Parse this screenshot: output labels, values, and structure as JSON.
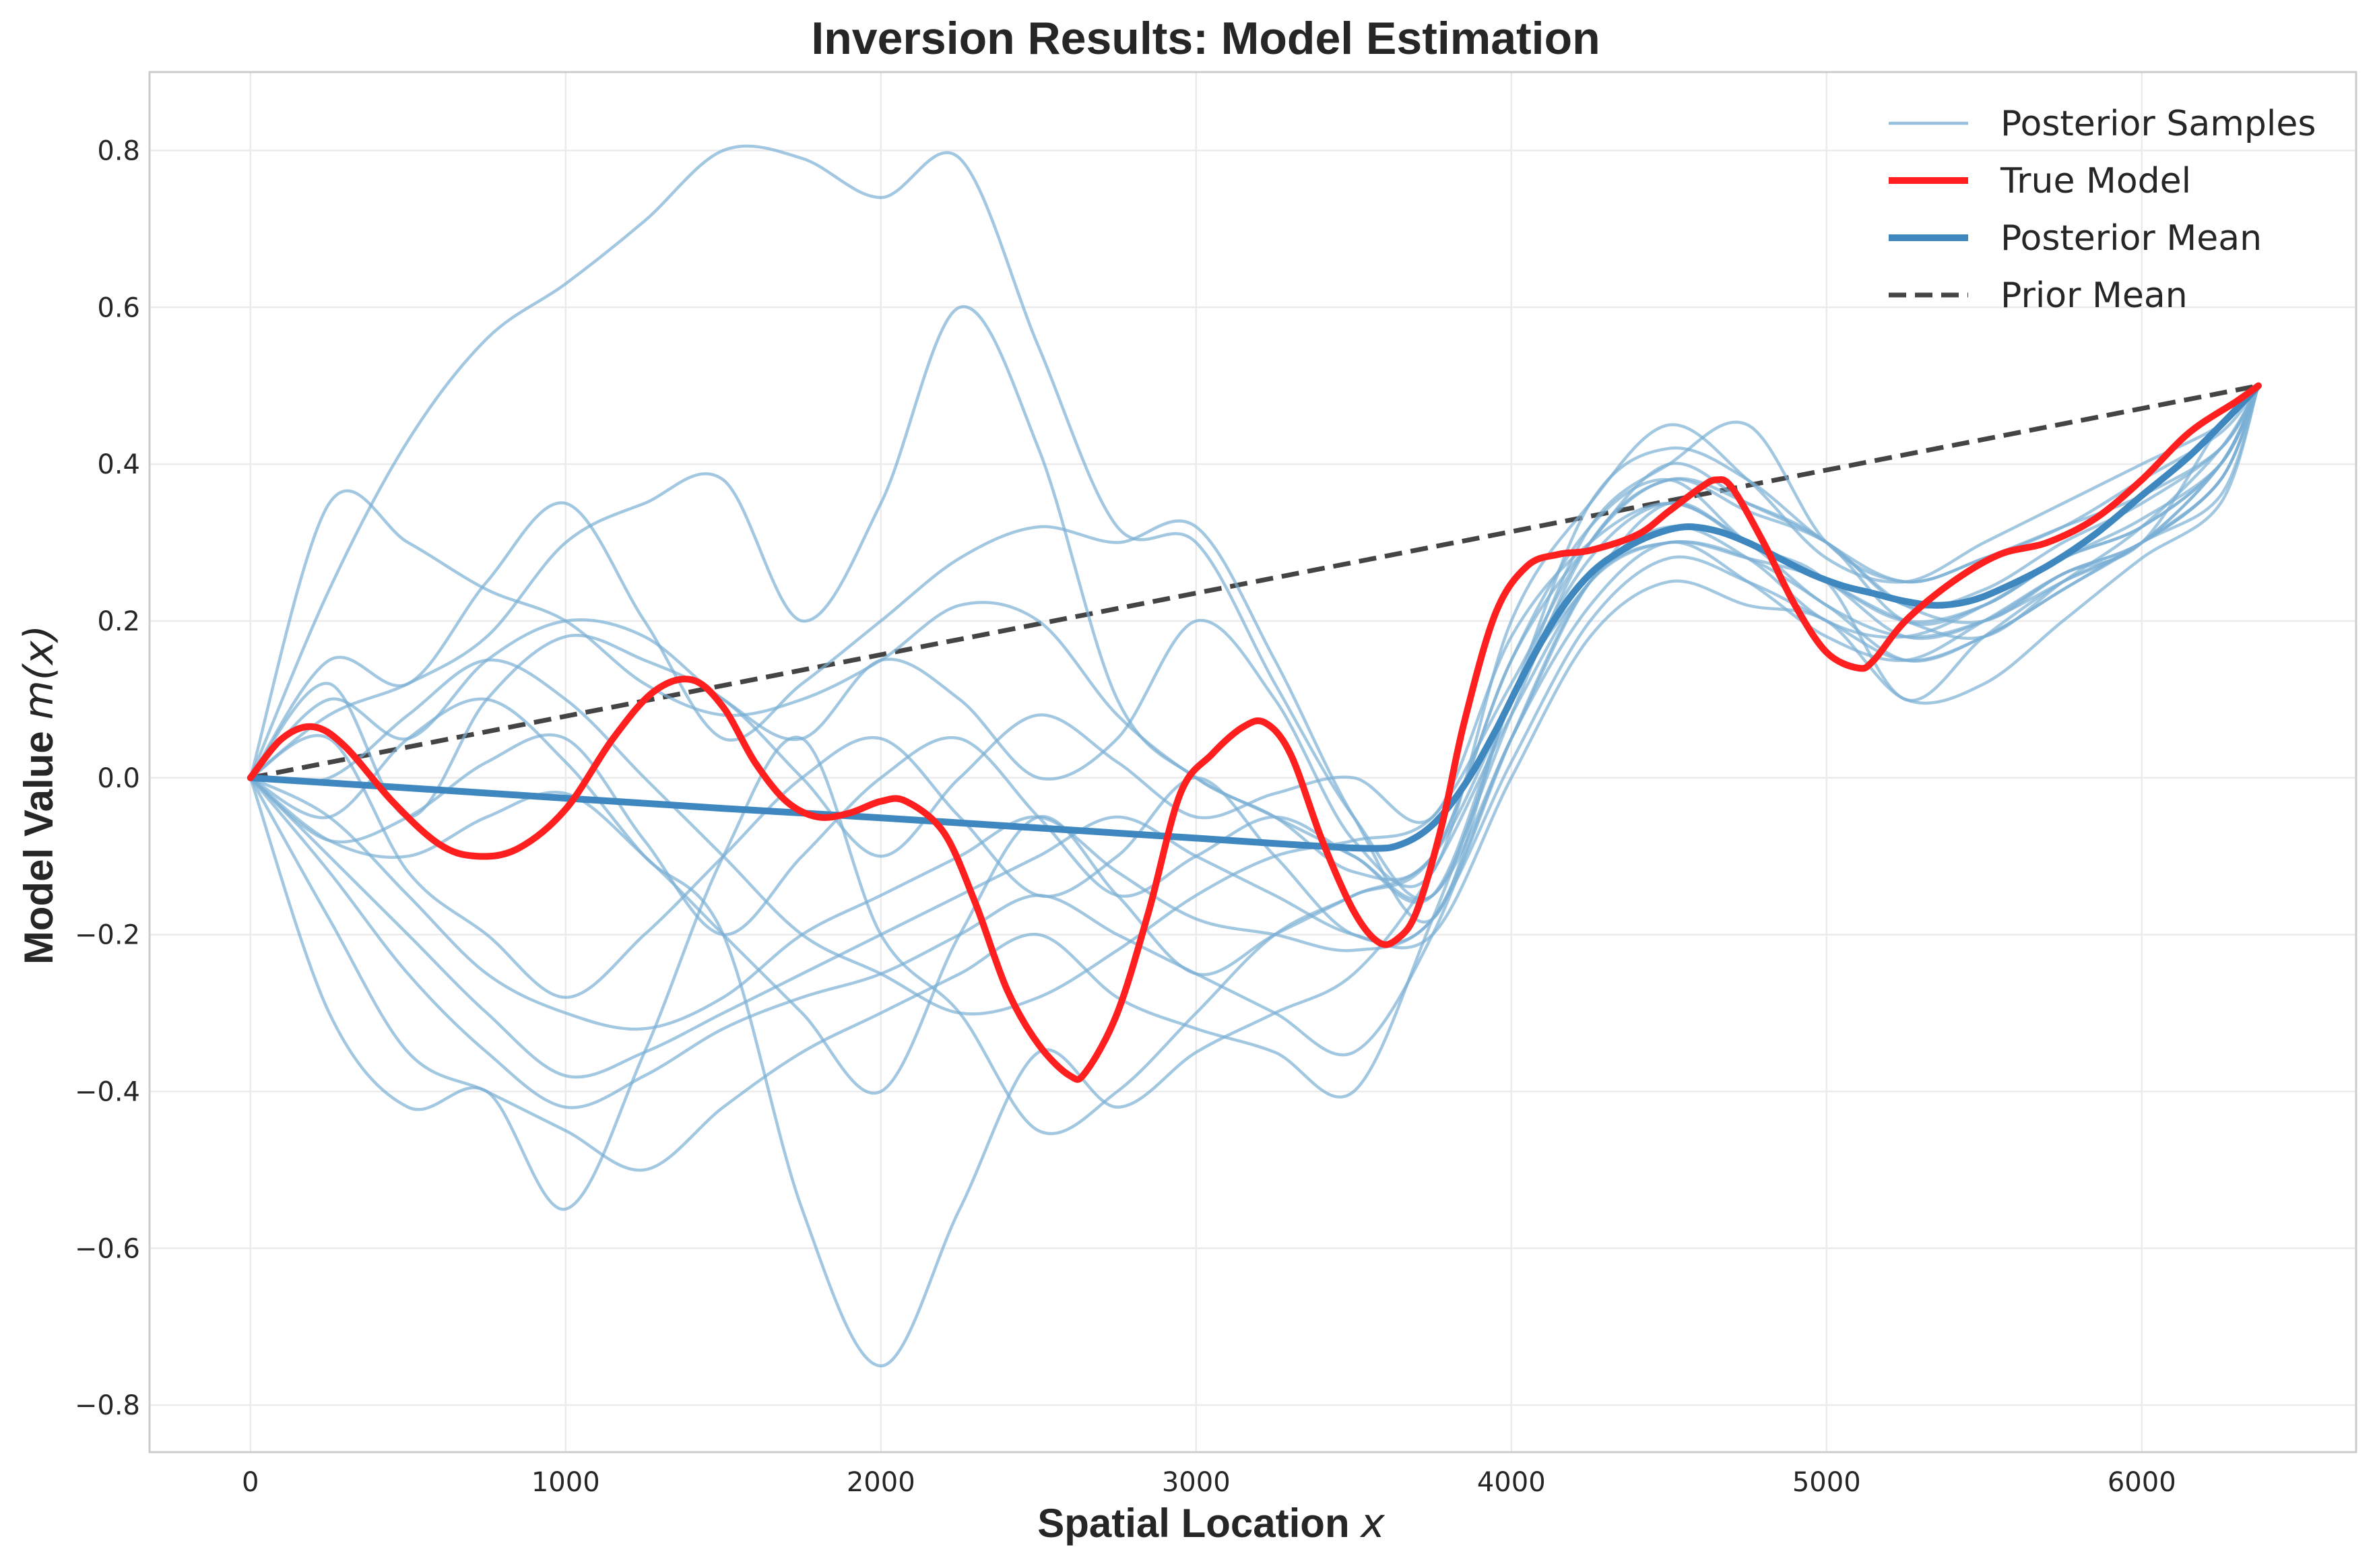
{
  "chart_data": {
    "type": "line",
    "title": "Inversion Results: Model Estimation",
    "xlabel": {
      "text": "Spatial Location ",
      "math": "x"
    },
    "ylabel": {
      "text": "Model Value ",
      "math": "m(x)"
    },
    "xlim": [
      -320,
      6680
    ],
    "ylim": [
      -0.86,
      0.9
    ],
    "xticks": [
      0,
      1000,
      2000,
      3000,
      4000,
      5000,
      6000
    ],
    "xtick_labels": [
      "0",
      "1000",
      "2000",
      "3000",
      "4000",
      "5000",
      "6000"
    ],
    "yticks": [
      0.8,
      0.6,
      0.4,
      0.2,
      0.0,
      -0.2,
      -0.4,
      -0.6,
      -0.8
    ],
    "ytick_labels": [
      "0.8",
      "0.6",
      "0.4",
      "0.2",
      "0.0",
      "−0.2",
      "−0.4",
      "−0.6",
      "−0.8"
    ],
    "grid": true,
    "legend_position": "top-right",
    "legend": [
      {
        "label": "Posterior Samples",
        "color": "#7bafd4",
        "style": "solid-thin"
      },
      {
        "label": "True Model",
        "color": "#ff1f1f",
        "style": "solid-thick"
      },
      {
        "label": "Posterior Mean",
        "color": "#3f87bf",
        "style": "solid-thick"
      },
      {
        "label": "Prior Mean",
        "color": "#444444",
        "style": "dashed"
      }
    ],
    "colors": {
      "samples": "#7bafd4",
      "true_model": "#ff1f1f",
      "posterior_mean": "#3f87bf",
      "prior_mean": "#444444"
    },
    "x_grid": [
      0,
      250,
      500,
      750,
      1000,
      1250,
      1500,
      1750,
      2000,
      2250,
      2500,
      2750,
      3000,
      3250,
      3500,
      3750,
      4000,
      4250,
      4500,
      4750,
      5000,
      5250,
      5500,
      5750,
      6000,
      6250,
      6370
    ],
    "true_model": {
      "x": [
        0,
        100,
        200,
        300,
        450,
        600,
        720,
        850,
        1000,
        1150,
        1280,
        1400,
        1500,
        1600,
        1700,
        1800,
        1900,
        2000,
        2080,
        2200,
        2300,
        2400,
        2500,
        2600,
        2650,
        2750,
        2850,
        2950,
        3050,
        3150,
        3220,
        3300,
        3400,
        3500,
        3580,
        3640,
        3700,
        3780,
        3850,
        3950,
        4050,
        4150,
        4250,
        4400,
        4500,
        4600,
        4650,
        4700,
        4800,
        4900,
        5000,
        5100,
        5150,
        5250,
        5400,
        5550,
        5700,
        5850,
        6000,
        6150,
        6300,
        6370
      ],
      "y": [
        0.0,
        0.05,
        0.065,
        0.04,
        -0.03,
        -0.085,
        -0.1,
        -0.09,
        -0.04,
        0.05,
        0.11,
        0.125,
        0.09,
        0.02,
        -0.03,
        -0.05,
        -0.045,
        -0.03,
        -0.03,
        -0.07,
        -0.16,
        -0.27,
        -0.34,
        -0.38,
        -0.375,
        -0.3,
        -0.17,
        -0.02,
        0.03,
        0.065,
        0.07,
        0.03,
        -0.08,
        -0.17,
        -0.21,
        -0.205,
        -0.17,
        -0.06,
        0.07,
        0.21,
        0.27,
        0.285,
        0.29,
        0.31,
        0.34,
        0.37,
        0.38,
        0.37,
        0.3,
        0.22,
        0.16,
        0.14,
        0.15,
        0.2,
        0.25,
        0.285,
        0.3,
        0.33,
        0.38,
        0.44,
        0.48,
        0.5
      ]
    },
    "posterior_mean": {
      "x": [
        0,
        500,
        1000,
        1500,
        2000,
        2500,
        3000,
        3300,
        3550,
        3650,
        3750,
        3850,
        3950,
        4050,
        4150,
        4250,
        4350,
        4450,
        4550,
        4650,
        4750,
        4850,
        4950,
        5050,
        5150,
        5250,
        5350,
        5450,
        5550,
        5700,
        5850,
        6000,
        6150,
        6300,
        6370
      ],
      "y": [
        0.0,
        -0.013,
        -0.026,
        -0.039,
        -0.051,
        -0.064,
        -0.077,
        -0.085,
        -0.09,
        -0.085,
        -0.06,
        -0.01,
        0.06,
        0.14,
        0.21,
        0.26,
        0.29,
        0.31,
        0.32,
        0.315,
        0.3,
        0.28,
        0.26,
        0.245,
        0.235,
        0.225,
        0.22,
        0.225,
        0.24,
        0.27,
        0.31,
        0.36,
        0.41,
        0.47,
        0.5
      ]
    },
    "prior_mean": {
      "x": [
        0,
        6370
      ],
      "y": [
        0.0,
        0.5
      ]
    },
    "posterior_samples": [
      {
        "y": [
          0.0,
          0.24,
          0.43,
          0.56,
          0.63,
          0.71,
          0.8,
          0.79,
          0.74,
          0.79,
          0.55,
          0.32,
          0.3,
          0.12,
          -0.05,
          -0.15,
          0.1,
          0.35,
          0.42,
          0.38,
          0.3,
          0.25,
          0.28,
          0.32,
          0.36,
          0.42,
          0.5
        ]
      },
      {
        "y": [
          0.0,
          0.08,
          0.12,
          0.18,
          0.3,
          0.35,
          0.38,
          0.2,
          0.35,
          0.6,
          0.42,
          0.1,
          0.0,
          -0.05,
          -0.12,
          -0.1,
          0.15,
          0.3,
          0.4,
          0.35,
          0.3,
          0.22,
          0.2,
          0.26,
          0.3,
          0.45,
          0.5
        ]
      },
      {
        "y": [
          0.0,
          0.35,
          0.3,
          0.24,
          0.2,
          0.12,
          0.08,
          0.1,
          0.15,
          0.22,
          0.2,
          0.08,
          0.0,
          -0.05,
          -0.1,
          -0.15,
          0.05,
          0.25,
          0.32,
          0.28,
          0.2,
          0.18,
          0.22,
          0.28,
          0.33,
          0.4,
          0.5
        ]
      },
      {
        "y": [
          0.0,
          0.15,
          0.12,
          0.25,
          0.35,
          0.2,
          0.05,
          0.12,
          0.2,
          0.28,
          0.32,
          0.3,
          0.32,
          0.15,
          -0.05,
          -0.18,
          0.1,
          0.25,
          0.35,
          0.3,
          0.25,
          0.2,
          0.18,
          0.25,
          0.32,
          0.42,
          0.5
        ]
      },
      {
        "y": [
          0.0,
          0.1,
          0.05,
          0.15,
          0.2,
          0.18,
          0.1,
          0.05,
          0.15,
          0.1,
          0.0,
          0.05,
          0.2,
          0.1,
          -0.08,
          -0.12,
          0.2,
          0.35,
          0.45,
          0.38,
          0.28,
          0.25,
          0.3,
          0.35,
          0.4,
          0.45,
          0.5
        ]
      },
      {
        "y": [
          0.0,
          0.12,
          -0.05,
          0.1,
          0.18,
          0.15,
          0.1,
          0.0,
          -0.1,
          0.0,
          0.08,
          0.02,
          -0.05,
          -0.02,
          0.0,
          -0.05,
          0.18,
          0.3,
          0.35,
          0.3,
          0.22,
          0.18,
          0.2,
          0.25,
          0.3,
          0.4,
          0.5
        ]
      },
      {
        "y": [
          0.0,
          -0.08,
          -0.05,
          0.02,
          0.05,
          -0.08,
          -0.2,
          -0.1,
          0.0,
          0.05,
          -0.05,
          -0.15,
          -0.1,
          -0.05,
          -0.1,
          -0.15,
          0.1,
          0.28,
          0.35,
          0.3,
          0.25,
          0.2,
          0.22,
          0.28,
          0.32,
          0.4,
          0.5
        ]
      },
      {
        "y": [
          0.0,
          0.05,
          -0.12,
          -0.2,
          -0.28,
          -0.2,
          -0.1,
          0.0,
          0.05,
          -0.05,
          -0.15,
          -0.1,
          0.0,
          -0.1,
          -0.2,
          -0.18,
          0.05,
          0.22,
          0.3,
          0.25,
          0.18,
          0.15,
          0.2,
          0.26,
          0.3,
          0.38,
          0.5
        ]
      },
      {
        "y": [
          0.0,
          -0.05,
          -0.15,
          -0.25,
          -0.3,
          -0.32,
          -0.28,
          -0.2,
          -0.15,
          -0.1,
          -0.05,
          -0.12,
          -0.18,
          -0.2,
          -0.22,
          -0.18,
          0.02,
          0.2,
          0.28,
          0.25,
          0.2,
          0.15,
          0.18,
          0.24,
          0.3,
          0.36,
          0.5
        ]
      },
      {
        "y": [
          0.0,
          -0.1,
          -0.2,
          -0.3,
          -0.38,
          -0.35,
          -0.3,
          -0.25,
          -0.2,
          -0.15,
          -0.1,
          -0.05,
          -0.1,
          -0.15,
          -0.2,
          -0.2,
          0.0,
          0.18,
          0.25,
          0.22,
          0.2,
          0.1,
          0.12,
          0.2,
          0.28,
          0.35,
          0.5
        ]
      },
      {
        "y": [
          0.0,
          -0.12,
          -0.25,
          -0.35,
          -0.42,
          -0.38,
          -0.32,
          -0.28,
          -0.25,
          -0.2,
          -0.15,
          -0.2,
          -0.25,
          -0.3,
          -0.35,
          -0.2,
          0.05,
          0.25,
          0.3,
          0.28,
          0.25,
          0.18,
          0.2,
          0.26,
          0.3,
          0.38,
          0.5
        ]
      },
      {
        "y": [
          0.0,
          -0.18,
          -0.35,
          -0.4,
          -0.45,
          -0.5,
          -0.42,
          -0.35,
          -0.3,
          -0.25,
          -0.2,
          -0.28,
          -0.32,
          -0.35,
          -0.4,
          -0.18,
          0.08,
          0.3,
          0.38,
          0.35,
          0.3,
          0.2,
          0.22,
          0.28,
          0.32,
          0.4,
          0.5
        ]
      },
      {
        "y": [
          0.0,
          -0.3,
          -0.42,
          -0.4,
          -0.55,
          -0.35,
          -0.1,
          0.05,
          -0.2,
          -0.3,
          -0.45,
          -0.4,
          -0.3,
          -0.2,
          -0.15,
          -0.1,
          0.1,
          0.32,
          0.4,
          0.45,
          0.3,
          0.25,
          0.28,
          0.32,
          0.38,
          0.44,
          0.5
        ]
      },
      {
        "y": [
          0.0,
          0.0,
          0.08,
          0.15,
          0.1,
          0.0,
          -0.1,
          -0.2,
          -0.25,
          -0.3,
          -0.28,
          -0.22,
          -0.15,
          -0.1,
          -0.08,
          -0.05,
          0.12,
          0.3,
          0.38,
          0.34,
          0.3,
          0.22,
          0.24,
          0.3,
          0.35,
          0.42,
          0.5
        ]
      },
      {
        "y": [
          0.0,
          -0.05,
          0.05,
          0.1,
          0.02,
          -0.1,
          -0.2,
          -0.55,
          -0.75,
          -0.55,
          -0.35,
          -0.42,
          -0.35,
          -0.3,
          -0.25,
          -0.12,
          0.08,
          0.25,
          0.3,
          0.28,
          0.22,
          0.15,
          0.18,
          0.24,
          0.3,
          0.38,
          0.5
        ]
      },
      {
        "y": [
          0.0,
          -0.08,
          -0.1,
          -0.05,
          -0.02,
          -0.1,
          -0.2,
          -0.3,
          -0.4,
          -0.2,
          -0.05,
          -0.15,
          -0.25,
          -0.2,
          -0.15,
          -0.1,
          0.15,
          0.32,
          0.38,
          0.3,
          0.25,
          0.1,
          0.18,
          0.25,
          0.3,
          0.4,
          0.5
        ]
      }
    ]
  }
}
